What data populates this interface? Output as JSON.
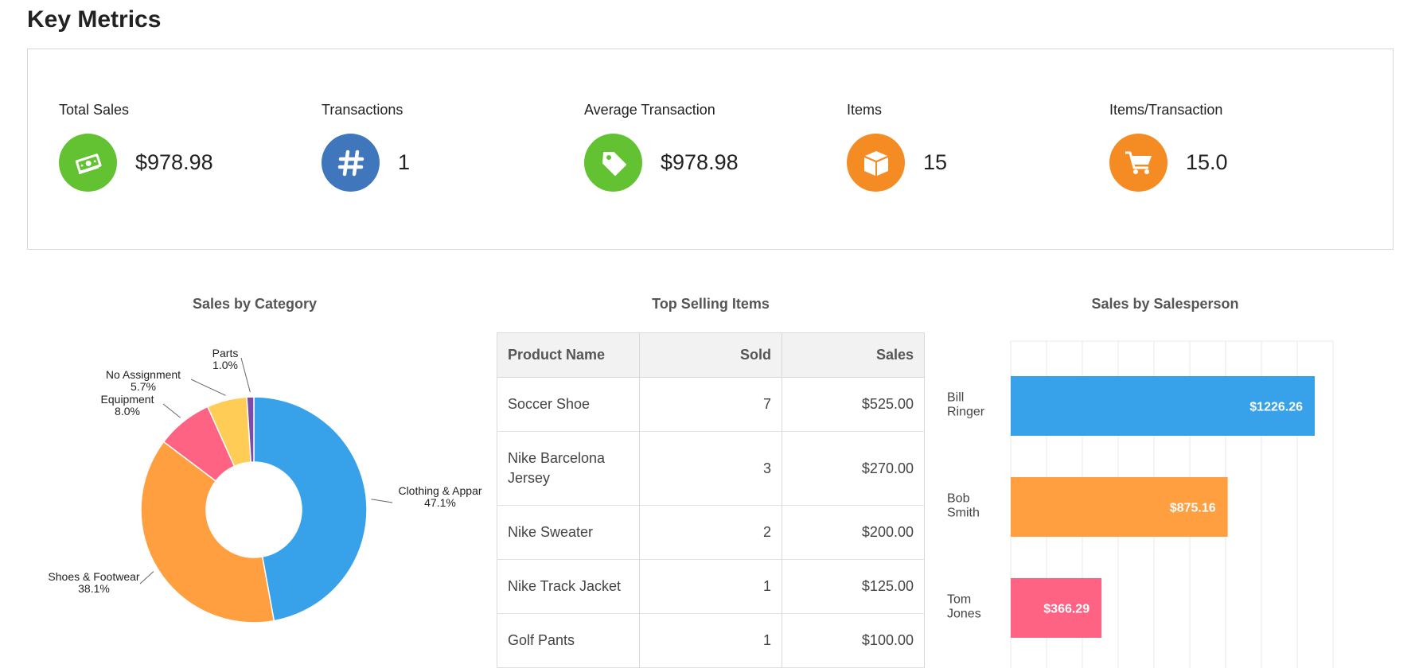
{
  "page": {
    "title": "Key Metrics"
  },
  "metrics": [
    {
      "label": "Total Sales",
      "value": "$978.98",
      "icon": "money-icon",
      "color": "#62c231"
    },
    {
      "label": "Transactions",
      "value": "1",
      "icon": "hash-icon",
      "color": "#3f76bc"
    },
    {
      "label": "Average Transaction",
      "value": "$978.98",
      "icon": "tag-icon",
      "color": "#62c231"
    },
    {
      "label": "Items",
      "value": "15",
      "icon": "box-icon",
      "color": "#f48c23"
    },
    {
      "label": "Items/Transaction",
      "value": "15.0",
      "icon": "cart-icon",
      "color": "#f48c23"
    }
  ],
  "category_chart": {
    "title": "Sales by Category",
    "chart_data": {
      "type": "pie",
      "slices": [
        {
          "name": "Clothing & Appar",
          "pct": "47.1%",
          "value": 47.1,
          "color": "#37a2e9"
        },
        {
          "name": "Shoes & Footwear",
          "pct": "38.1%",
          "value": 38.1,
          "color": "#ff9f40"
        },
        {
          "name": "Equipment",
          "pct": "8.0%",
          "value": 8.0,
          "color": "#ff6384"
        },
        {
          "name": "No Assignment",
          "pct": "5.7%",
          "value": 5.7,
          "color": "#ffcd56"
        },
        {
          "name": "Parts",
          "pct": "1.0%",
          "value": 1.0,
          "color": "#7b4ca8"
        }
      ]
    }
  },
  "top_items": {
    "title": "Top Selling Items",
    "columns": [
      "Product Name",
      "Sold",
      "Sales"
    ],
    "rows": [
      {
        "name": "Soccer Shoe",
        "sold": "7",
        "sales": "$525.00"
      },
      {
        "name": "Nike Barcelona Jersey",
        "sold": "3",
        "sales": "$270.00"
      },
      {
        "name": "Nike Sweater",
        "sold": "2",
        "sales": "$200.00"
      },
      {
        "name": "Nike Track Jacket",
        "sold": "1",
        "sales": "$125.00"
      },
      {
        "name": "Golf Pants",
        "sold": "1",
        "sales": "$100.00"
      }
    ]
  },
  "salesperson_chart": {
    "title": "Sales by Salesperson",
    "chart_data": {
      "type": "bar",
      "orientation": "horizontal",
      "categories": [
        [
          "Bill",
          "Ringer"
        ],
        [
          "Bob",
          "Smith"
        ],
        [
          "Tom",
          "Jones"
        ]
      ],
      "values": [
        1226.26,
        875.16,
        366.29
      ],
      "value_labels": [
        "$1226.26",
        "$875.16",
        "$366.29"
      ],
      "colors": [
        "#37a2e9",
        "#ff9f40",
        "#ff6384"
      ],
      "xlim": [
        0,
        1300
      ],
      "grid": true
    }
  }
}
